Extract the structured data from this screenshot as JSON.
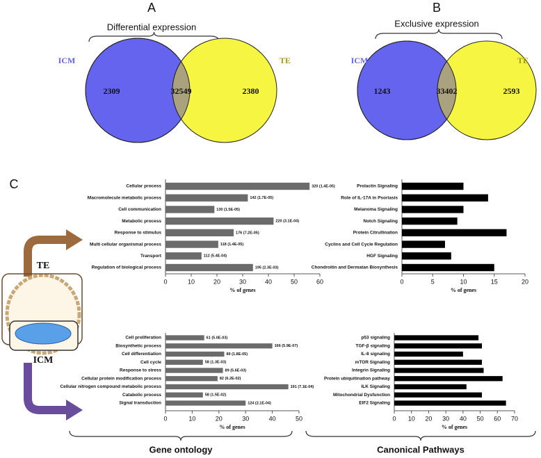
{
  "labels": {
    "panel_c": "C",
    "te": "TE",
    "icm": "ICM",
    "gene_ontology": "Gene ontology",
    "canonical_pathways": "Canonical Pathways"
  },
  "chart_data": [
    {
      "type": "venn",
      "panel": "A",
      "title": "Differential expression",
      "sets": [
        "ICM",
        "TE"
      ],
      "values": [
        2309,
        32549,
        2380
      ],
      "colors": [
        "#6464ee",
        "#f6f542",
        "#aaa27e"
      ]
    },
    {
      "type": "venn",
      "panel": "B",
      "title": "Exclusive expression",
      "sets": [
        "ICM",
        "TE"
      ],
      "values": [
        1243,
        33402,
        2593
      ],
      "colors": [
        "#6464ee",
        "#f6f542",
        "#aaa27e"
      ]
    },
    {
      "type": "bar",
      "orientation": "horizontal",
      "color": "#6b6b6b",
      "categories": [
        "Cellular process",
        "Macromolecule metabolic process",
        "Cell communication",
        "Metabolic process",
        "Response to stimulus",
        "Multi cellular organismal process",
        "Transport",
        "Regulation of biological process"
      ],
      "values": [
        56,
        32,
        19,
        42,
        26.5,
        20.5,
        14,
        34
      ],
      "bar_labels": [
        "320 (1.4E-05)",
        "142 (1.7E-05)",
        "130 (1.5E-05)",
        "220 (3.1E-04)",
        "176 (7.2E-05)",
        "118 (1.4E-05)",
        "112 (5.4E-04)",
        "195 (2.3E-03)"
      ],
      "xlim": [
        0,
        60
      ],
      "xticks": [
        0,
        10,
        20,
        30,
        40,
        50,
        60
      ],
      "xlabel": "% of genes"
    },
    {
      "type": "bar",
      "orientation": "horizontal",
      "color": "#000000",
      "categories": [
        "Prolactin Signaling",
        "Role of IL-17A in Psoriasis",
        "Melanoma Signaling",
        "Notch Signaling",
        "Protein Citrullination",
        "Cyclins and Cell Cycle Regulation",
        "HGF Signaling",
        "Chondroitin and Dermatan Biosynthesis"
      ],
      "values": [
        10,
        14,
        10,
        9,
        17,
        7,
        8,
        15
      ],
      "xlim": [
        0,
        20
      ],
      "xticks": [
        0,
        5,
        10,
        15,
        20
      ],
      "xlabel": "% of genes"
    },
    {
      "type": "bar",
      "orientation": "horizontal",
      "color": "#6b6b6b",
      "categories": [
        "Cell proliferation",
        "Biosynthetic process",
        "Cell differentiation",
        "Cell cycle",
        "Response to stress",
        "Cellular protein modification process",
        "Cellular nitrogen compound metabolic process",
        "Catabolic process",
        "Signal transduction"
      ],
      "values": [
        14.5,
        40,
        22,
        14,
        21.5,
        19.5,
        46,
        14,
        30
      ],
      "bar_labels": [
        "61 (5.0E-03)",
        "166 (5.9E-07)",
        "89 (1.8E-05)",
        "58 (1.3E-03)",
        "89 (5.6E-03)",
        "82 (6.2E-02)",
        "191 (7.1E-04)",
        "58 (1.5E-02)",
        "124 (2.1E-04)"
      ],
      "xlim": [
        0,
        50
      ],
      "xticks": [
        0,
        10,
        20,
        30,
        40,
        50
      ],
      "xlabel": "% of genes"
    },
    {
      "type": "bar",
      "orientation": "horizontal",
      "color": "#000000",
      "categories": [
        "p53 signaling",
        "TGF-β signaling",
        "IL-8 signaling",
        "mTOR Signaling",
        "Integrin Signaling",
        "Protein ubiquitination pathway",
        "ILK Signaling",
        "Mitochondrial Dysfunction",
        "EIF2 Signaling"
      ],
      "values": [
        49,
        51,
        40,
        51,
        52,
        63,
        42,
        51,
        65
      ],
      "xlim": [
        0,
        70
      ],
      "xticks": [
        0,
        10,
        20,
        30,
        40,
        50,
        60,
        70
      ],
      "xlabel": "% of genes"
    }
  ]
}
